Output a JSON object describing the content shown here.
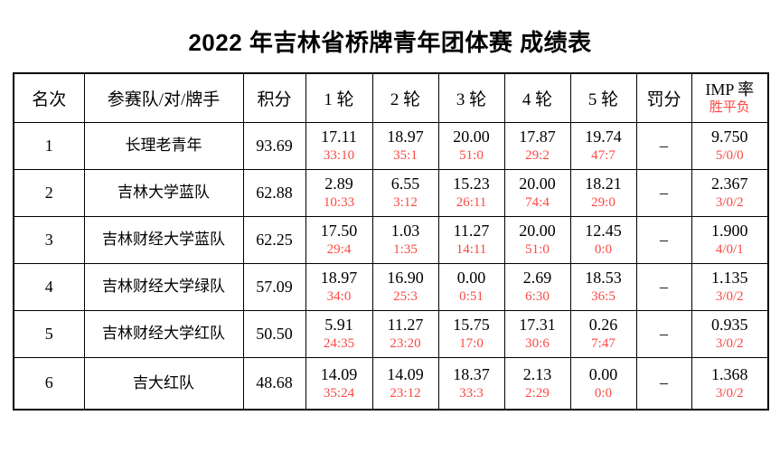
{
  "title": "2022 年吉林省桥牌青年团体赛 成绩表",
  "colors": {
    "text": "#000000",
    "accent_red": "#FC4842",
    "border": "#000000",
    "background": "#FFFFFF"
  },
  "table": {
    "headers": {
      "rank": "名次",
      "team": "参赛队/对/牌手",
      "points": "积分",
      "rounds": [
        "1 轮",
        "2 轮",
        "3 轮",
        "4 轮",
        "5 轮"
      ],
      "penalty": "罚分",
      "imp_rate": "IMP 率",
      "win_draw_loss": "胜平负"
    },
    "rows": [
      {
        "rank": "1",
        "team": "长理老青年",
        "points": "93.69",
        "rounds": [
          {
            "score": "17.11",
            "ratio": "33:10"
          },
          {
            "score": "18.97",
            "ratio": "35:1"
          },
          {
            "score": "20.00",
            "ratio": "51:0"
          },
          {
            "score": "17.87",
            "ratio": "29:2"
          },
          {
            "score": "19.74",
            "ratio": "47:7"
          }
        ],
        "penalty": "–",
        "imp_rate": "9.750",
        "win_draw_loss": "5/0/0"
      },
      {
        "rank": "2",
        "team": "吉林大学蓝队",
        "points": "62.88",
        "rounds": [
          {
            "score": "2.89",
            "ratio": "10:33"
          },
          {
            "score": "6.55",
            "ratio": "3:12"
          },
          {
            "score": "15.23",
            "ratio": "26:11"
          },
          {
            "score": "20.00",
            "ratio": "74:4"
          },
          {
            "score": "18.21",
            "ratio": "29:0"
          }
        ],
        "penalty": "–",
        "imp_rate": "2.367",
        "win_draw_loss": "3/0/2"
      },
      {
        "rank": "3",
        "team": "吉林财经大学蓝队",
        "points": "62.25",
        "rounds": [
          {
            "score": "17.50",
            "ratio": "29:4"
          },
          {
            "score": "1.03",
            "ratio": "1:35"
          },
          {
            "score": "11.27",
            "ratio": "14:11"
          },
          {
            "score": "20.00",
            "ratio": "51:0"
          },
          {
            "score": "12.45",
            "ratio": "0:0"
          }
        ],
        "penalty": "–",
        "imp_rate": "1.900",
        "win_draw_loss": "4/0/1"
      },
      {
        "rank": "4",
        "team": "吉林财经大学绿队",
        "points": "57.09",
        "rounds": [
          {
            "score": "18.97",
            "ratio": "34:0"
          },
          {
            "score": "16.90",
            "ratio": "25:3"
          },
          {
            "score": "0.00",
            "ratio": "0:51"
          },
          {
            "score": "2.69",
            "ratio": "6:30"
          },
          {
            "score": "18.53",
            "ratio": "36:5"
          }
        ],
        "penalty": "–",
        "imp_rate": "1.135",
        "win_draw_loss": "3/0/2"
      },
      {
        "rank": "5",
        "team": "吉林财经大学红队",
        "points": "50.50",
        "rounds": [
          {
            "score": "5.91",
            "ratio": "24:35"
          },
          {
            "score": "11.27",
            "ratio": "23:20"
          },
          {
            "score": "15.75",
            "ratio": "17:0"
          },
          {
            "score": "17.31",
            "ratio": "30:6"
          },
          {
            "score": "0.26",
            "ratio": "7:47"
          }
        ],
        "penalty": "–",
        "imp_rate": "0.935",
        "win_draw_loss": "3/0/2"
      },
      {
        "rank": "6",
        "team": "吉大红队",
        "points": "48.68",
        "rounds": [
          {
            "score": "14.09",
            "ratio": "35:24"
          },
          {
            "score": "14.09",
            "ratio": "23:12"
          },
          {
            "score": "18.37",
            "ratio": "33:3"
          },
          {
            "score": "2.13",
            "ratio": "2:29"
          },
          {
            "score": "0.00",
            "ratio": "0:0"
          }
        ],
        "penalty": "–",
        "imp_rate": "1.368",
        "win_draw_loss": "3/0/2"
      }
    ]
  }
}
